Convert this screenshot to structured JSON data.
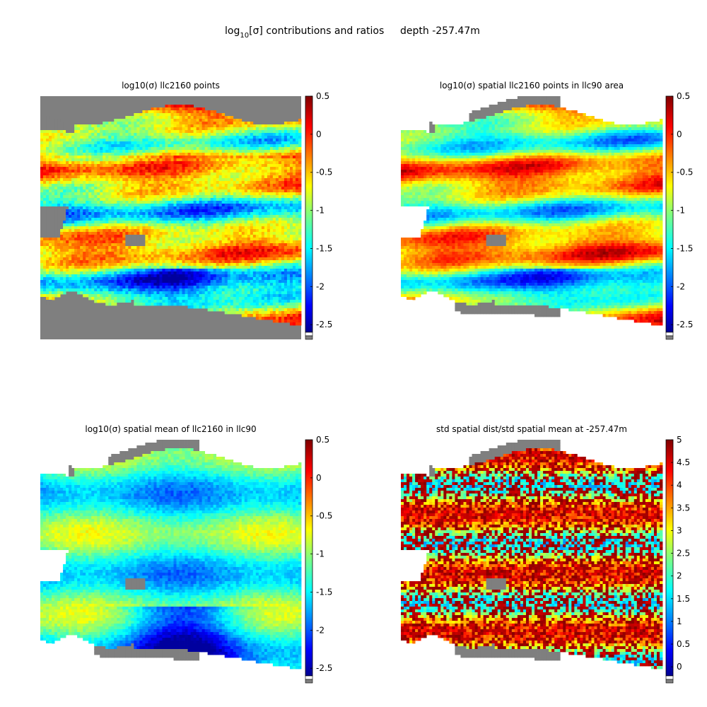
{
  "figure": {
    "title_main": "log",
    "title_sub": "10",
    "title_rest": "[σ] contributions and ratios",
    "title_depth": "depth -257.47m"
  },
  "chart_data": [
    {
      "type": "heatmap",
      "title": "log10(σ) llc2160 points",
      "colorbar_ticks": [
        "0.5",
        "0",
        "-0.5",
        "-1",
        "-1.5",
        "-2",
        "-2.5"
      ],
      "clim": [
        -2.6,
        0.5
      ],
      "colormap": "jet",
      "masked_color": "#7f7f7f"
    },
    {
      "type": "heatmap",
      "title": "log10(σ) spatial llc2160 points in llc90 area",
      "colorbar_ticks": [
        "0.5",
        "0",
        "-0.5",
        "-1",
        "-1.5",
        "-2",
        "-2.5"
      ],
      "clim": [
        -2.6,
        0.5
      ],
      "colormap": "jet",
      "masked_color": "#7f7f7f"
    },
    {
      "type": "heatmap",
      "title": "log10(σ) spatial mean of llc2160 in llc90",
      "colorbar_ticks": [
        "0.5",
        "0",
        "-0.5",
        "-1",
        "-1.5",
        "-2",
        "-2.5"
      ],
      "clim": [
        -2.6,
        0.5
      ],
      "colormap": "jet",
      "masked_color": "#7f7f7f"
    },
    {
      "type": "heatmap",
      "title": "std spatial dist/std spatial mean at -257.47m",
      "colorbar_ticks": [
        "5",
        "4.5",
        "4",
        "3.5",
        "3",
        "2.5",
        "2",
        "1.5",
        "1",
        "0.5",
        "0"
      ],
      "clim": [
        -0.2,
        5
      ],
      "colormap": "jet",
      "masked_color": "#7f7f7f"
    }
  ]
}
